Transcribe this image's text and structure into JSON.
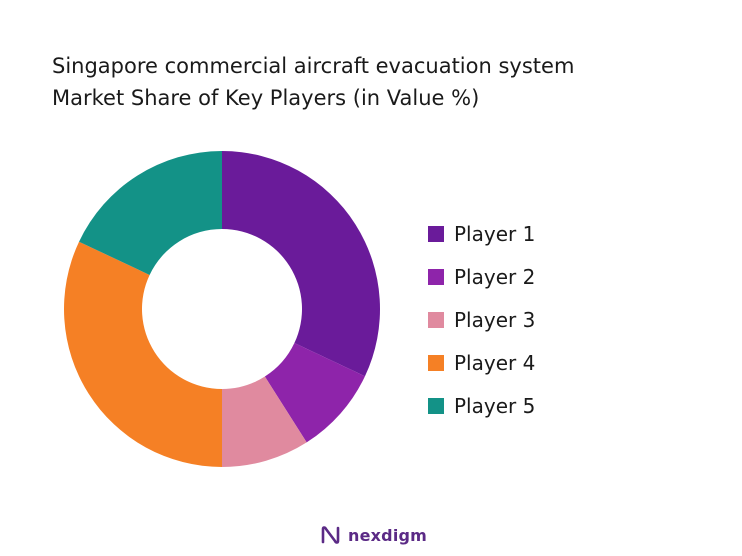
{
  "chart_data": {
    "type": "pie",
    "title": "Singapore commercial aircraft evacuation system",
    "subtitle": "Market Share of Key Players (in Value %)",
    "categories": [
      "Player 1",
      "Player 2",
      "Player 3",
      "Player 4",
      "Player 5"
    ],
    "values": [
      32,
      9,
      9,
      32,
      18
    ],
    "colors": [
      "#6a1b9a",
      "#8e24aa",
      "#e08a9f",
      "#f58025",
      "#139287"
    ],
    "legend_position": "right"
  },
  "brand": {
    "name": "nexdigm",
    "icon": "nexdigm-logo-icon"
  }
}
